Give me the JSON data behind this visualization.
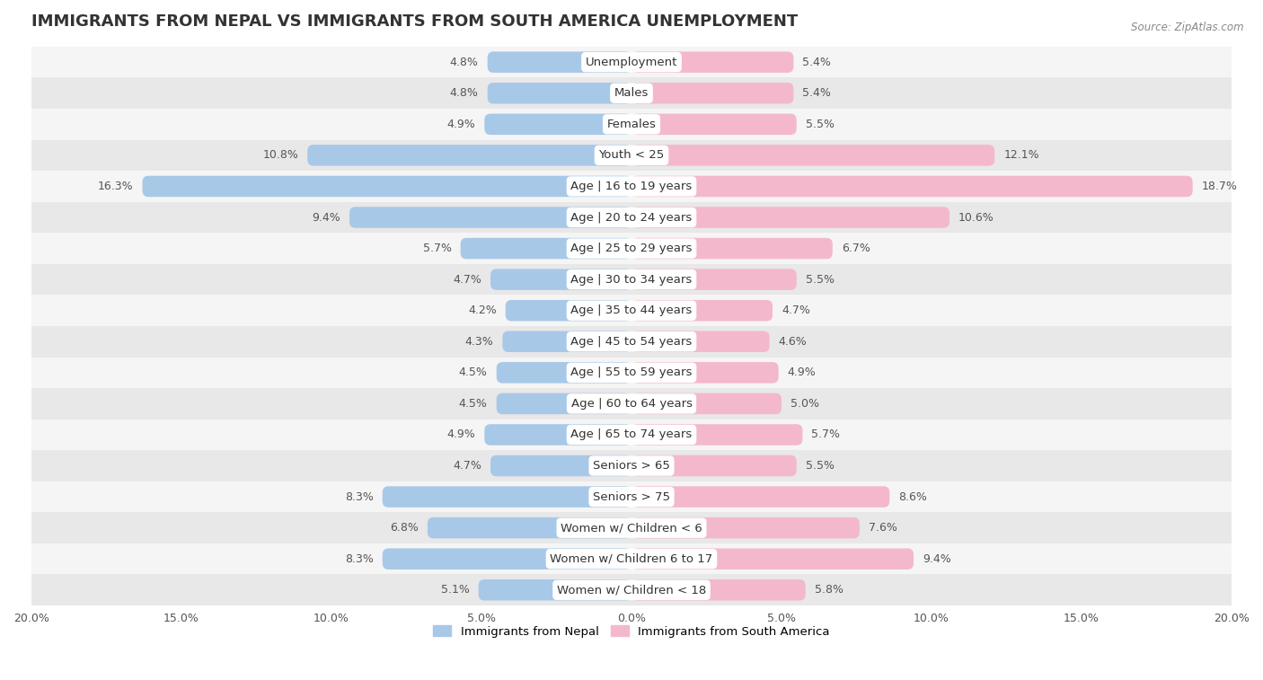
{
  "title": "IMMIGRANTS FROM NEPAL VS IMMIGRANTS FROM SOUTH AMERICA UNEMPLOYMENT",
  "source": "Source: ZipAtlas.com",
  "categories": [
    "Unemployment",
    "Males",
    "Females",
    "Youth < 25",
    "Age | 16 to 19 years",
    "Age | 20 to 24 years",
    "Age | 25 to 29 years",
    "Age | 30 to 34 years",
    "Age | 35 to 44 years",
    "Age | 45 to 54 years",
    "Age | 55 to 59 years",
    "Age | 60 to 64 years",
    "Age | 65 to 74 years",
    "Seniors > 65",
    "Seniors > 75",
    "Women w/ Children < 6",
    "Women w/ Children 6 to 17",
    "Women w/ Children < 18"
  ],
  "nepal_values": [
    4.8,
    4.8,
    4.9,
    10.8,
    16.3,
    9.4,
    5.7,
    4.7,
    4.2,
    4.3,
    4.5,
    4.5,
    4.9,
    4.7,
    8.3,
    6.8,
    8.3,
    5.1
  ],
  "south_america_values": [
    5.4,
    5.4,
    5.5,
    12.1,
    18.7,
    10.6,
    6.7,
    5.5,
    4.7,
    4.6,
    4.9,
    5.0,
    5.7,
    5.5,
    8.6,
    7.6,
    9.4,
    5.8
  ],
  "nepal_color": "#a8c8e8",
  "south_america_color": "#f4b8cc",
  "nepal_label": "Immigrants from Nepal",
  "south_america_label": "Immigrants from South America",
  "xlim": 20.0,
  "bar_height": 0.68,
  "row_color_light": "#f5f5f5",
  "row_color_dark": "#e8e8e8",
  "title_fontsize": 13,
  "label_fontsize": 9.5,
  "value_fontsize": 9,
  "axis_label_fontsize": 9
}
